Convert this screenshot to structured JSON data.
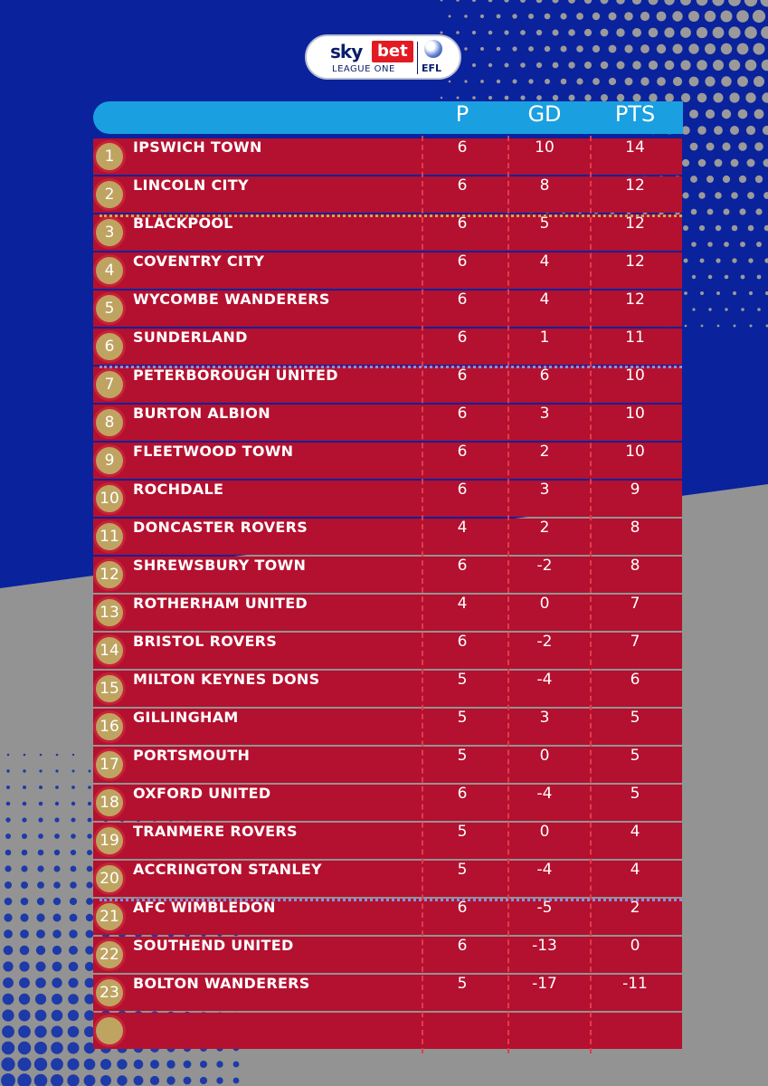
{
  "branding": {
    "sponsor_sky": "sky",
    "sponsor_bet": "bet",
    "league_name": "LEAGUE ONE",
    "efl": "EFL"
  },
  "columns": {
    "played": "P",
    "goal_difference": "GD",
    "points": "PTS"
  },
  "colors": {
    "background_blue": "#0a229c",
    "background_grey": "#939393",
    "header_bar": "#1a9fe0",
    "row": "#b4102f",
    "badge": "#bfa361",
    "promotion_line": "#d6a34a",
    "playoff_relegation_line": "#8a8fe3"
  },
  "standings": [
    {
      "pos": "1",
      "team": "IPSWICH TOWN",
      "p": "6",
      "gd": "10",
      "pts": "14"
    },
    {
      "pos": "2",
      "team": "LINCOLN CITY",
      "p": "6",
      "gd": "8",
      "pts": "12"
    },
    {
      "pos": "3",
      "team": "BLACKPOOL",
      "p": "6",
      "gd": "5",
      "pts": "12"
    },
    {
      "pos": "4",
      "team": "COVENTRY CITY",
      "p": "6",
      "gd": "4",
      "pts": "12"
    },
    {
      "pos": "5",
      "team": "WYCOMBE WANDERERS",
      "p": "6",
      "gd": "4",
      "pts": "12"
    },
    {
      "pos": "6",
      "team": "SUNDERLAND",
      "p": "6",
      "gd": "1",
      "pts": "11"
    },
    {
      "pos": "7",
      "team": "PETERBOROUGH UNITED",
      "p": "6",
      "gd": "6",
      "pts": "10"
    },
    {
      "pos": "8",
      "team": "BURTON ALBION",
      "p": "6",
      "gd": "3",
      "pts": "10"
    },
    {
      "pos": "9",
      "team": "FLEETWOOD TOWN",
      "p": "6",
      "gd": "2",
      "pts": "10"
    },
    {
      "pos": "10",
      "team": "ROCHDALE",
      "p": "6",
      "gd": "3",
      "pts": "9"
    },
    {
      "pos": "11",
      "team": "DONCASTER ROVERS",
      "p": "4",
      "gd": "2",
      "pts": "8"
    },
    {
      "pos": "12",
      "team": "SHREWSBURY TOWN",
      "p": "6",
      "gd": "-2",
      "pts": "8"
    },
    {
      "pos": "13",
      "team": "ROTHERHAM UNITED",
      "p": "4",
      "gd": "0",
      "pts": "7"
    },
    {
      "pos": "14",
      "team": "BRISTOL ROVERS",
      "p": "6",
      "gd": "-2",
      "pts": "7"
    },
    {
      "pos": "15",
      "team": "MILTON KEYNES DONS",
      "p": "5",
      "gd": "-4",
      "pts": "6"
    },
    {
      "pos": "16",
      "team": "GILLINGHAM",
      "p": "5",
      "gd": "3",
      "pts": "5"
    },
    {
      "pos": "17",
      "team": "PORTSMOUTH",
      "p": "5",
      "gd": "0",
      "pts": "5"
    },
    {
      "pos": "18",
      "team": "OXFORD UNITED",
      "p": "6",
      "gd": "-4",
      "pts": "5"
    },
    {
      "pos": "19",
      "team": "TRANMERE ROVERS",
      "p": "5",
      "gd": "0",
      "pts": "4"
    },
    {
      "pos": "20",
      "team": "ACCRINGTON STANLEY",
      "p": "5",
      "gd": "-4",
      "pts": "4"
    },
    {
      "pos": "21",
      "team": "AFC WIMBLEDON",
      "p": "6",
      "gd": "-5",
      "pts": "2"
    },
    {
      "pos": "22",
      "team": "SOUTHEND UNITED",
      "p": "6",
      "gd": "-13",
      "pts": "0"
    },
    {
      "pos": "23",
      "team": "BOLTON WANDERERS",
      "p": "5",
      "gd": "-17",
      "pts": "-11"
    },
    {
      "pos": "",
      "team": "",
      "p": "",
      "gd": "",
      "pts": ""
    }
  ]
}
